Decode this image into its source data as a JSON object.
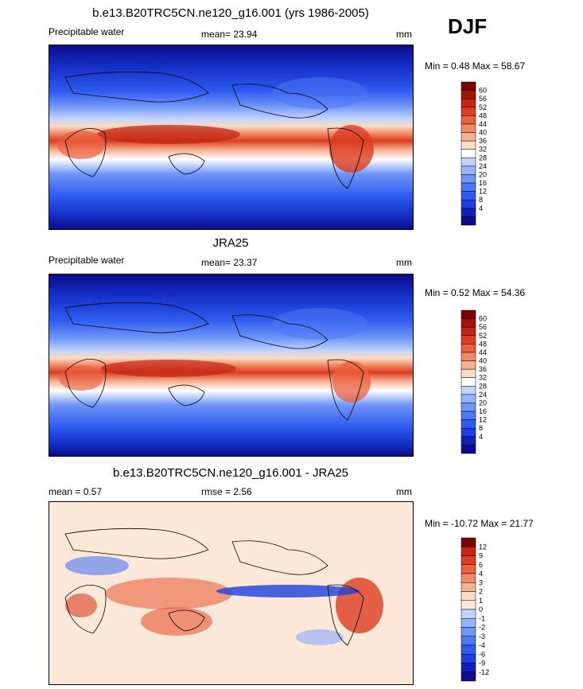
{
  "season_label": "DJF",
  "colors": {
    "precip": [
      "#0c0c8c",
      "#1020b8",
      "#1e3ee0",
      "#2f5bf0",
      "#4d78f5",
      "#6f95f7",
      "#97b4f8",
      "#c2d4fb",
      "#ffffff",
      "#fbdcc4",
      "#f6b394",
      "#f08a66",
      "#ea6140",
      "#dc3c21",
      "#c22512",
      "#a0140a",
      "#7a0303"
    ],
    "diff": [
      "#0c0c8c",
      "#1020b8",
      "#1e3ee0",
      "#2f5bf0",
      "#4d78f5",
      "#6f95f7",
      "#97b4f8",
      "#c2d4fb",
      "#fbe8d8",
      "#fbdcc4",
      "#f6b394",
      "#f08a66",
      "#ea6140",
      "#dc3c21",
      "#c22512",
      "#7a0303"
    ]
  },
  "panels": [
    {
      "id": "model",
      "title": "b.e13.B20TRC5CN.ne120_g16.001 (yrs 1986-2005)",
      "left_label": "Precipitable water",
      "center_label": "mean=  23.94",
      "units": "mm",
      "minmax": "Min =   0.48 Max =  58.67",
      "colorbar_labels": [
        "60",
        "56",
        "52",
        "48",
        "44",
        "40",
        "36",
        "32",
        "28",
        "24",
        "20",
        "16",
        "12",
        "8",
        "4"
      ]
    },
    {
      "id": "obs",
      "title": "JRA25",
      "left_label": "Precipitable water",
      "center_label": "mean=  23.37",
      "units": "mm",
      "minmax": "Min =   0.52 Max =  54.36",
      "colorbar_labels": [
        "60",
        "56",
        "52",
        "48",
        "44",
        "40",
        "36",
        "32",
        "28",
        "24",
        "20",
        "16",
        "12",
        "8",
        "4"
      ]
    },
    {
      "id": "diff",
      "title": "b.e13.B20TRC5CN.ne120_g16.001 - JRA25",
      "left_label": "mean =   0.57",
      "center_label": "rmse =   2.56",
      "units": "mm",
      "minmax": "Min = -10.72 Max =  21.77",
      "colorbar_labels": [
        "12",
        "9",
        "6",
        "4",
        "3",
        "2",
        "1",
        "0",
        "-1",
        "-2",
        "-3",
        "-4",
        "-6",
        "-9",
        "-12"
      ]
    }
  ]
}
